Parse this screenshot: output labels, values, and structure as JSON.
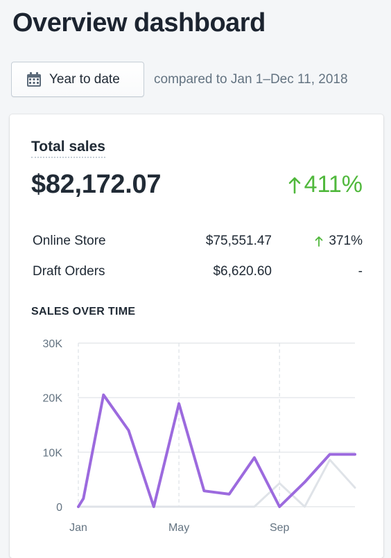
{
  "header": {
    "title": "Overview dashboard"
  },
  "date_filter": {
    "label": "Year to date",
    "icon": "calendar-icon",
    "comparison_text": "compared to Jan 1–Dec 11, 2018"
  },
  "total_sales": {
    "title": "Total sales",
    "value": "$82,172.07",
    "change": "411%",
    "change_color": "#50b83c",
    "breakdown": [
      {
        "name": "Online Store",
        "amount": "$75,551.47",
        "change": "371%",
        "trend": "up"
      },
      {
        "name": "Draft Orders",
        "amount": "$6,620.60",
        "change": "-",
        "trend": "none"
      }
    ]
  },
  "sales_over_time": {
    "heading": "SALES OVER TIME"
  },
  "chart_data": {
    "type": "line",
    "title": "SALES OVER TIME",
    "xlabel": "",
    "ylabel": "",
    "x_tick_labels": [
      "Jan",
      "May",
      "Sep"
    ],
    "x_tick_positions": [
      0,
      4,
      8
    ],
    "y_ticks": [
      0,
      10000,
      20000,
      30000
    ],
    "y_tick_labels": [
      "0",
      "10K",
      "20K",
      "30K"
    ],
    "ylim": [
      0,
      30000
    ],
    "xlim": [
      0,
      11
    ],
    "grid": true,
    "legend": "none",
    "series": [
      {
        "role": "current",
        "color": "#9c6ade",
        "x": [
          0,
          0.2,
          1,
          2,
          3,
          4,
          5,
          6,
          7,
          8,
          9,
          10,
          11
        ],
        "values": [
          0,
          1500,
          20500,
          14000,
          0,
          18900,
          2900,
          2300,
          9000,
          0,
          4500,
          9600,
          9600
        ]
      },
      {
        "role": "comparison",
        "color": "#dfe3e8",
        "x": [
          0,
          1,
          2,
          3,
          4,
          5,
          6,
          7,
          8,
          9,
          10,
          11
        ],
        "values": [
          0,
          0,
          0,
          0,
          0,
          0,
          0,
          0,
          4300,
          0,
          8600,
          3500
        ]
      }
    ]
  }
}
